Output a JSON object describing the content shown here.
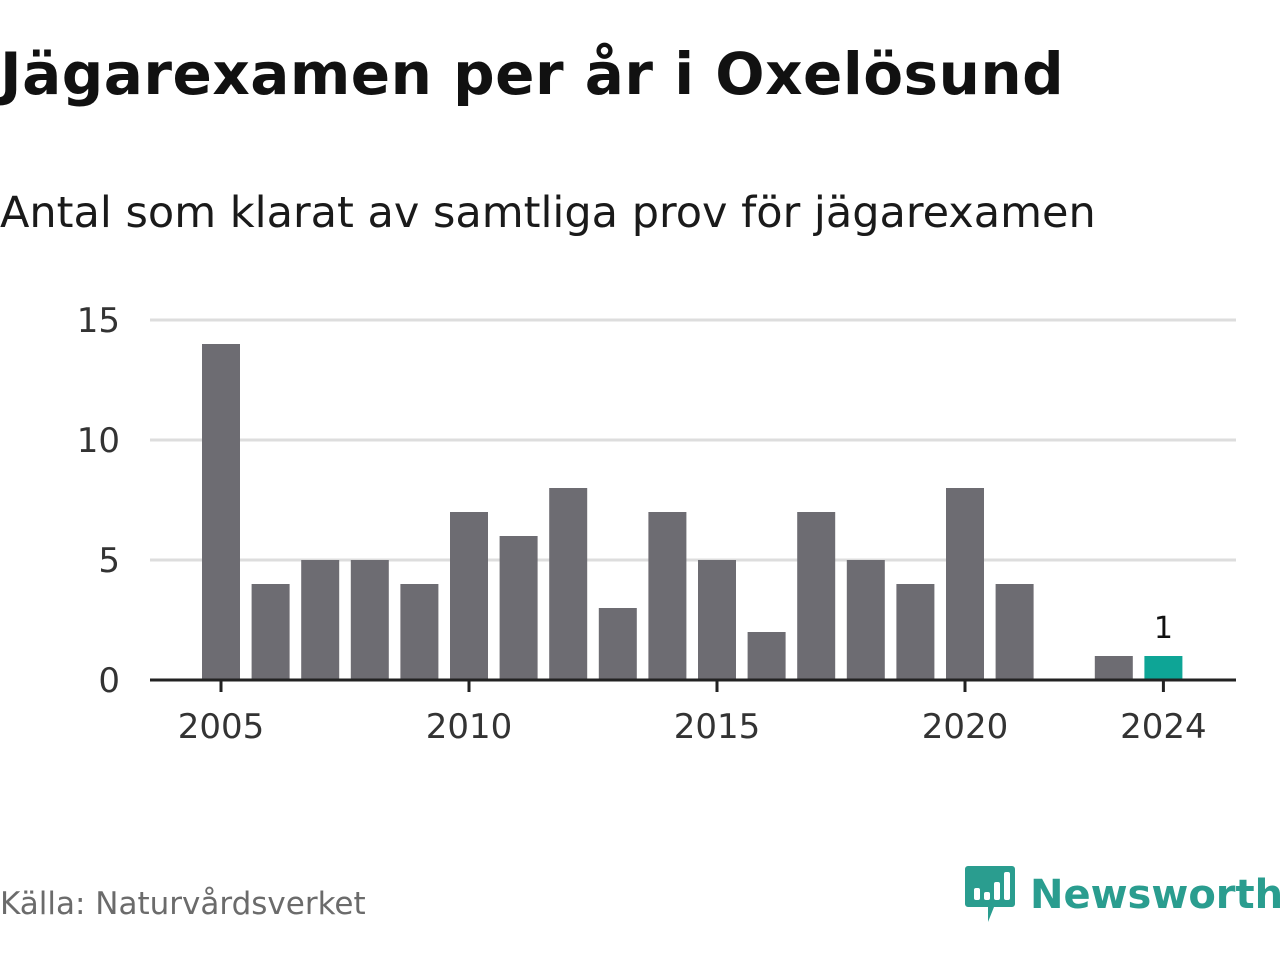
{
  "title": "Jägarexamen per år i Oxelösund",
  "subtitle": "Antal som klarat av samtliga prov för jägarexamen",
  "source": "Källa: Naturvårdsverket",
  "brand": "Newsworthy",
  "colors": {
    "bar": "#6d6c72",
    "highlight": "#0ea596",
    "grid": "#dddddd",
    "axis": "#222222",
    "brand": "#2a9d8f"
  },
  "chart_data": {
    "type": "bar",
    "categories": [
      2005,
      2006,
      2007,
      2008,
      2009,
      2010,
      2011,
      2012,
      2013,
      2014,
      2015,
      2016,
      2017,
      2018,
      2019,
      2020,
      2021,
      2022,
      2023,
      2024
    ],
    "values": [
      14,
      4,
      5,
      5,
      4,
      7,
      6,
      8,
      3,
      7,
      5,
      2,
      7,
      5,
      4,
      8,
      4,
      0,
      1,
      1
    ],
    "highlight_category": 2024,
    "value_labels": [
      {
        "category": 2024,
        "text": "1"
      }
    ],
    "ylim": [
      0,
      15
    ],
    "yticks": [
      0,
      5,
      10,
      15
    ],
    "xticks": [
      2005,
      2010,
      2015,
      2020,
      2024
    ],
    "grid": true,
    "xlabel": "",
    "ylabel": ""
  }
}
